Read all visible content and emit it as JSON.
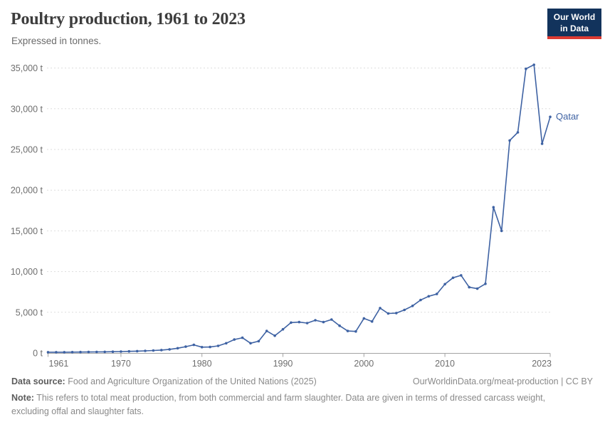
{
  "header": {
    "title": "Poultry production, 1961 to 2023",
    "subtitle": "Expressed in tonnes.",
    "logo": {
      "line1": "Our World",
      "line2": "in Data",
      "bg_color": "#12335c",
      "bar_color": "#dc3b33"
    }
  },
  "chart_data": {
    "type": "line",
    "title": "Poultry production, 1961 to 2023",
    "subtitle": "Expressed in tonnes.",
    "unit": "t",
    "grid": true,
    "legend_position": "line-end",
    "end_label": "Qatar",
    "xlim": [
      1961,
      2023
    ],
    "ylim": [
      0,
      35000
    ],
    "x_tick_values": [
      1961,
      1970,
      1980,
      1990,
      2000,
      2010,
      2023
    ],
    "x_tick_labels": [
      "1961",
      "1970",
      "1980",
      "1990",
      "2000",
      "2010",
      "2023"
    ],
    "y_tick_values": [
      0,
      5000,
      10000,
      15000,
      20000,
      25000,
      30000,
      35000
    ],
    "y_tick_labels": [
      "0 t",
      "5,000 t",
      "10,000 t",
      "15,000 t",
      "20,000 t",
      "25,000 t",
      "30,000 t",
      "35,000 t"
    ],
    "x": [
      1961,
      1962,
      1963,
      1964,
      1965,
      1966,
      1967,
      1968,
      1969,
      1970,
      1971,
      1972,
      1973,
      1974,
      1975,
      1976,
      1977,
      1978,
      1979,
      1980,
      1981,
      1982,
      1983,
      1984,
      1985,
      1986,
      1987,
      1988,
      1989,
      1990,
      1991,
      1992,
      1993,
      1994,
      1995,
      1996,
      1997,
      1998,
      1999,
      2000,
      2001,
      2002,
      2003,
      2004,
      2005,
      2006,
      2007,
      2008,
      2009,
      2010,
      2011,
      2012,
      2013,
      2014,
      2015,
      2016,
      2017,
      2018,
      2019,
      2020,
      2021,
      2022,
      2023
    ],
    "series": [
      {
        "name": "Qatar",
        "color": "#3e62a3",
        "values": [
          100,
          100,
          100,
          105,
          110,
          120,
          130,
          140,
          155,
          175,
          200,
          230,
          265,
          305,
          355,
          450,
          590,
          780,
          1000,
          720,
          730,
          870,
          1200,
          1650,
          1870,
          1200,
          1450,
          2700,
          2120,
          2910,
          3730,
          3790,
          3670,
          4020,
          3790,
          4110,
          3350,
          2700,
          2650,
          4250,
          3870,
          5520,
          4850,
          4900,
          5290,
          5790,
          6500,
          6970,
          7250,
          8450,
          9240,
          9540,
          8080,
          7900,
          8500,
          17900,
          15000,
          26100,
          27100,
          34900,
          35400,
          25700,
          29000
        ]
      }
    ],
    "colors": {
      "grid": "#dddddd",
      "axis": "#a3a3a3",
      "tick_label": "#6e6e6e"
    }
  },
  "footer": {
    "source_label": "Data source:",
    "source_text": "Food and Agriculture Organization of the United Nations (2025)",
    "link_text": "OurWorldinData.org/meat-production | CC BY",
    "note_label": "Note:",
    "note_text": "This refers to total meat production, from both commercial and farm slaughter. Data are given in terms of dressed carcass weight, excluding offal and slaughter fats."
  }
}
